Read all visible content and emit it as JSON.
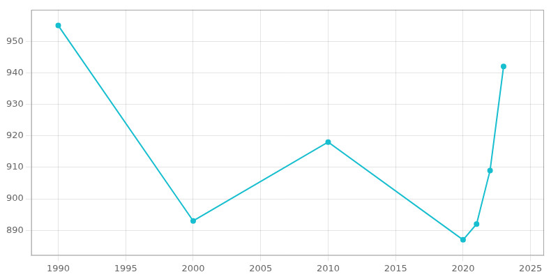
{
  "chart_data": {
    "type": "line",
    "x": [
      1990,
      2000,
      2010,
      2020,
      2021,
      2022,
      2023
    ],
    "values": [
      955,
      893,
      918,
      887,
      892,
      909,
      942
    ],
    "color": "#17BECF",
    "marker": "circle",
    "xlim": [
      1988,
      2026
    ],
    "ylim": [
      882,
      960
    ],
    "xticks": [
      1990,
      1995,
      2000,
      2005,
      2010,
      2015,
      2020,
      2025
    ],
    "yticks": [
      890,
      900,
      910,
      920,
      930,
      940,
      950
    ],
    "grid": true
  }
}
